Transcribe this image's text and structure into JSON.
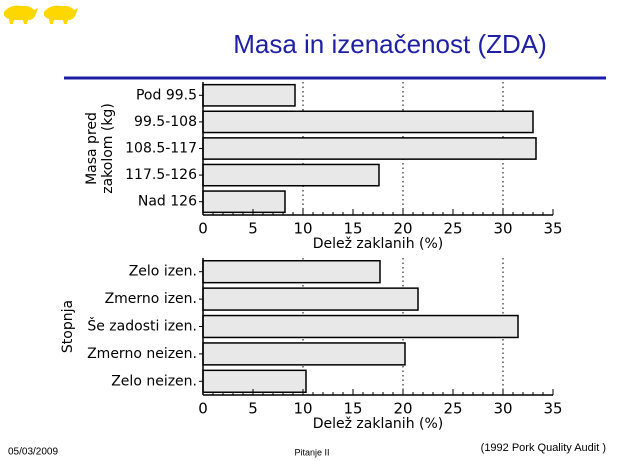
{
  "slide": {
    "title": "Masa in izenačenost (ZDA)",
    "date": "05/03/2009",
    "footer": "Pitanje II",
    "source": "(1992 Pork Quality Audit )"
  },
  "chart_data": [
    {
      "type": "hbar",
      "ylabel": [
        "Masa pred",
        "zakolom (kg)"
      ],
      "xlabel": "Delež zaklanih (%)",
      "categories": [
        "Pod 99.5",
        "99.5-108",
        "108.5-117",
        "117.5-126",
        "Nad 126"
      ],
      "values": [
        9.2,
        33,
        33.3,
        17.6,
        8.2
      ],
      "color": "#e8e8e8",
      "xlim": [
        0,
        35
      ],
      "xticks": [
        0,
        5,
        10,
        15,
        20,
        25,
        30,
        35
      ],
      "gridlines": [
        10,
        20,
        30
      ]
    },
    {
      "type": "hbar",
      "ylabel": [
        "Stopnja"
      ],
      "xlabel": "Delež zaklanih (%)",
      "categories": [
        "Zelo izen.",
        "Zmerno izen.",
        "Še zadosti izen.",
        "Zmerno neizen.",
        "Zelo neizen."
      ],
      "values": [
        17.7,
        21.5,
        31.5,
        20.2,
        10.3
      ],
      "color": "#e8e8e8",
      "xlim": [
        0,
        35
      ],
      "xticks": [
        0,
        5,
        10,
        15,
        20,
        25,
        30,
        35
      ],
      "gridlines": [
        10,
        20,
        30
      ]
    }
  ]
}
